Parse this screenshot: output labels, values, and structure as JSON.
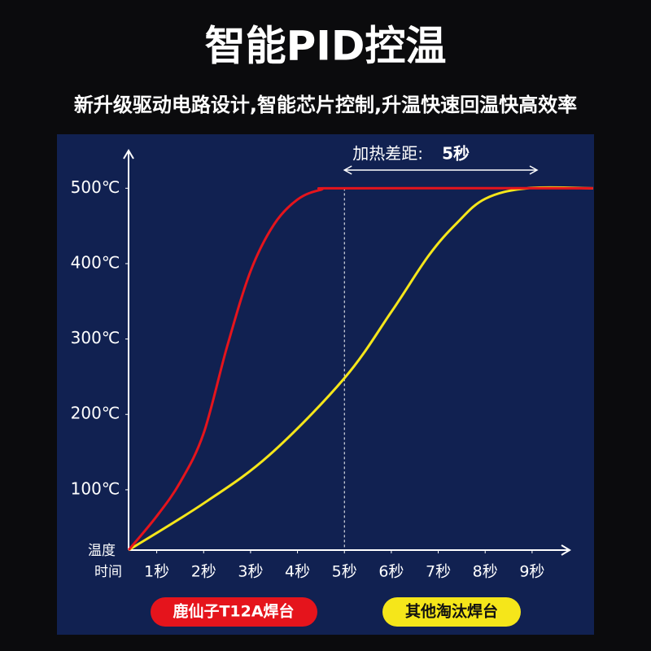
{
  "header": {
    "title": "智能PID控温",
    "subtitle": "新升级驱动电路设计,智能芯片控制,升温快速回温快高效率"
  },
  "chart_data": {
    "type": "line",
    "x_label": "时间",
    "y_label": "温度",
    "annotation": "加热差距:",
    "annotation_value": "5秒",
    "xlim": [
      0.4,
      9.8
    ],
    "ylim": [
      20,
      550
    ],
    "xticks": [
      {
        "value": 1,
        "label": "1秒"
      },
      {
        "value": 2,
        "label": "2秒"
      },
      {
        "value": 3,
        "label": "3秒"
      },
      {
        "value": 4,
        "label": "4秒"
      },
      {
        "value": 5,
        "label": "5秒"
      },
      {
        "value": 6,
        "label": "6秒"
      },
      {
        "value": 7,
        "label": "7秒"
      },
      {
        "value": 8,
        "label": "8秒"
      },
      {
        "value": 9,
        "label": "9秒"
      }
    ],
    "yticks": [
      {
        "value": 100,
        "label": "100℃"
      },
      {
        "value": 200,
        "label": "200℃"
      },
      {
        "value": 300,
        "label": "300℃"
      },
      {
        "value": 400,
        "label": "400℃"
      },
      {
        "value": 500,
        "label": "500℃"
      }
    ],
    "series": [
      {
        "name": "鹿仙子T12A焊台",
        "color": "#e5141c",
        "x": [
          0.4,
          1,
          1.5,
          2,
          2.5,
          3,
          3.5,
          4,
          4.5,
          5,
          10.3
        ],
        "values": [
          20,
          65,
          110,
          175,
          290,
          390,
          452,
          485,
          498,
          500,
          500
        ]
      },
      {
        "name": "其他淘汰焊台",
        "color": "#f5e61a",
        "x": [
          0.4,
          2,
          3.4,
          5,
          6,
          6.8,
          7.4,
          8,
          8.9,
          10.3
        ],
        "values": [
          20,
          82,
          146,
          248,
          336,
          411,
          454,
          486,
          500,
          500
        ]
      }
    ]
  }
}
